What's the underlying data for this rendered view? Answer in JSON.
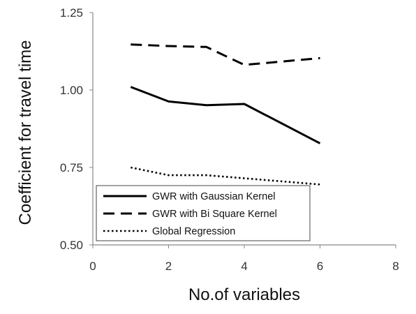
{
  "chart_data": {
    "type": "line",
    "xlabel": "No.of variables",
    "ylabel": "Coefficient for travel time",
    "xlim": [
      0,
      8
    ],
    "ylim": [
      0.5,
      1.25
    ],
    "xticks": [
      0,
      2,
      4,
      6,
      8
    ],
    "xtick_labels": [
      "0",
      "2",
      "4",
      "6",
      "8"
    ],
    "yticks": [
      0.5,
      0.75,
      1.0,
      1.25
    ],
    "ytick_labels": [
      "0.50",
      "0.75",
      "1.00",
      "1.25"
    ],
    "grid": false,
    "legend_position": "bottom-left",
    "series": [
      {
        "name": "GWR with Gaussian Kernel",
        "style": "solid",
        "color": "#000000",
        "x": [
          1,
          2,
          3,
          4,
          6
        ],
        "y": [
          1.01,
          0.963,
          0.951,
          0.955,
          0.828
        ]
      },
      {
        "name": "GWR with Bi Square Kernel",
        "style": "dashed",
        "color": "#000000",
        "x": [
          1,
          2,
          3,
          4,
          6
        ],
        "y": [
          1.147,
          1.142,
          1.139,
          1.081,
          1.103
        ]
      },
      {
        "name": "Global Regression",
        "style": "dotted",
        "color": "#000000",
        "x": [
          1,
          2,
          3,
          4,
          6
        ],
        "y": [
          0.75,
          0.725,
          0.725,
          0.715,
          0.695
        ]
      }
    ]
  }
}
